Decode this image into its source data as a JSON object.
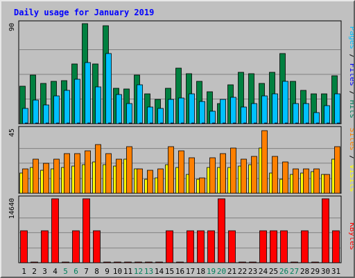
{
  "chart_data": {
    "type": "bar",
    "title": "Daily usage for January 2019",
    "categories": [
      "1",
      "2",
      "3",
      "4",
      "5",
      "6",
      "7",
      "8",
      "9",
      "10",
      "11",
      "12",
      "13",
      "14",
      "15",
      "16",
      "17",
      "18",
      "19",
      "20",
      "21",
      "22",
      "23",
      "24",
      "25",
      "26",
      "27",
      "28",
      "29",
      "30",
      "31"
    ],
    "weekend_days": [
      "5",
      "6",
      "12",
      "13",
      "19",
      "20",
      "26",
      "27"
    ],
    "panels": {
      "hits_files_pages": {
        "ymax_label": "90",
        "ymax": 90,
        "right_labels": [
          "Pages",
          "Files",
          "Hits"
        ],
        "series": [
          {
            "name": "Hits",
            "color": "#008040",
            "values": [
              34,
              44,
              36,
              38,
              39,
              54,
              90,
              54,
              88,
              32,
              31,
              44,
              27,
              22,
              32,
              50,
              45,
              38,
              29,
              18,
              35,
              46,
              45,
              36,
              46,
              63,
              38,
              30,
              27,
              27,
              43
            ]
          },
          {
            "name": "Files",
            "color": "#00c0ff",
            "values": [
              14,
              21,
              17,
              25,
              30,
              40,
              55,
              33,
              63,
              26,
              18,
              35,
              15,
              14,
              22,
              23,
              27,
              20,
              11,
              22,
              24,
              15,
              18,
              25,
              27,
              38,
              18,
              18,
              10,
              16,
              27
            ]
          },
          {
            "name": "Pages",
            "color": "#0000ff",
            "values": [
              0,
              0,
              0,
              0,
              0,
              0,
              0,
              0,
              0,
              0,
              0,
              0,
              0,
              0,
              0,
              0,
              0,
              0,
              0,
              0,
              0,
              0,
              0,
              0,
              0,
              0,
              0,
              0,
              0,
              0,
              0
            ]
          }
        ]
      },
      "visits_sites": {
        "ymax_label": "45",
        "ymax": 45,
        "right_labels": [
          "Sites",
          "Visits"
        ],
        "series": [
          {
            "name": "Visits",
            "color": "#ffff00",
            "values": [
              14,
              18,
              16,
              17,
              18,
              19,
              20,
              22,
              20,
              19,
              24,
              17,
              10,
              11,
              20,
              18,
              13,
              10,
              18,
              18,
              18,
              19,
              20,
              32,
              14,
              10,
              13,
              14,
              15,
              13,
              24
            ]
          },
          {
            "name": "Sites",
            "color": "#ff8000",
            "values": [
              17,
              24,
              21,
              24,
              28,
              28,
              30,
              34,
              28,
              24,
              33,
              17,
              16,
              17,
              33,
              30,
              25,
              11,
              25,
              28,
              32,
              24,
              26,
              44,
              26,
              22,
              17,
              17,
              17,
              13,
              33
            ]
          }
        ]
      },
      "kbytes": {
        "ymax_label": "14640",
        "ymax": 14640,
        "right_labels": [
          "KBytes"
        ],
        "series": [
          {
            "name": "KBytes",
            "color": "#ff0000",
            "values": [
              7320,
              0,
              7320,
              14640,
              0,
              7320,
              14640,
              7320,
              0,
              0,
              0,
              0,
              0,
              0,
              7320,
              0,
              7320,
              7320,
              7320,
              14640,
              7320,
              0,
              0,
              7320,
              7320,
              7320,
              0,
              7320,
              0,
              14640,
              7320
            ]
          }
        ]
      }
    },
    "colors": {
      "title": "#0000ff",
      "panel_bg": "#c0c0c0",
      "grid": "#808080",
      "weekday_label": "#000000",
      "weekend_label": "#00805c",
      "hits_label": "#00805c",
      "files_label": "#0000ff",
      "pages_label": "#00c0ff",
      "visits_label": "#ffff00",
      "sites_label": "#ff8000",
      "kbytes_label": "#ff0000"
    }
  }
}
